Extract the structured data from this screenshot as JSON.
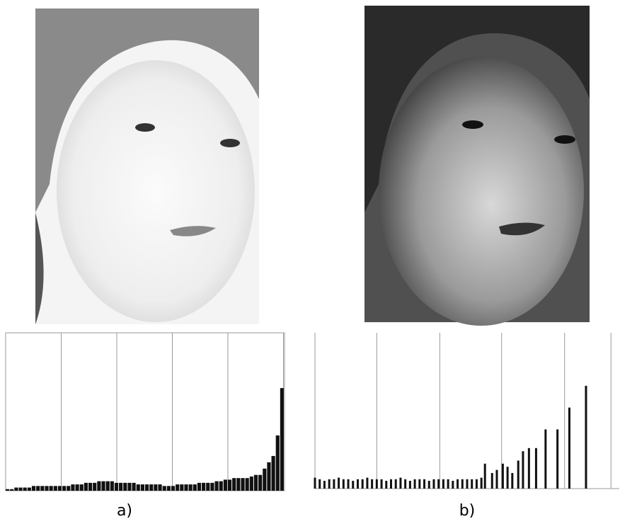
{
  "chart_data": [
    {
      "type": "histogram",
      "caption": "a)",
      "color": "#111111",
      "bins": [
        0,
        4,
        8,
        12,
        16,
        20,
        24,
        28,
        32,
        36,
        40,
        44,
        48,
        52,
        56,
        60,
        64,
        68,
        72,
        76,
        80,
        84,
        88,
        92,
        96,
        100,
        104,
        108,
        112,
        116,
        120,
        124,
        128,
        132,
        136,
        140,
        144,
        148,
        152,
        156,
        160,
        164,
        168,
        172,
        176,
        180,
        184,
        188,
        192,
        196,
        200,
        204,
        208,
        212,
        216,
        220,
        224,
        228,
        232,
        236,
        240,
        244,
        248,
        252,
        256
      ],
      "values": [
        1,
        1,
        2,
        2,
        2,
        2,
        3,
        3,
        3,
        3,
        3,
        3,
        3,
        3,
        3,
        4,
        4,
        4,
        5,
        5,
        5,
        6,
        6,
        6,
        6,
        5,
        5,
        5,
        5,
        5,
        4,
        4,
        4,
        4,
        4,
        4,
        3,
        3,
        3,
        4,
        4,
        4,
        4,
        4,
        5,
        5,
        5,
        5,
        6,
        6,
        7,
        7,
        8,
        8,
        8,
        8,
        9,
        10,
        10,
        14,
        18,
        22,
        35,
        65
      ],
      "xlim": [
        0,
        256
      ],
      "ylim": [
        0,
        100
      ],
      "xticks": [
        51,
        102,
        153,
        204,
        255
      ],
      "grid": true
    },
    {
      "type": "stem",
      "caption": "b)",
      "color": "#111111",
      "x": [
        0,
        4,
        8,
        12,
        16,
        20,
        24,
        28,
        32,
        36,
        40,
        44,
        48,
        52,
        56,
        60,
        64,
        68,
        72,
        76,
        80,
        84,
        88,
        92,
        96,
        100,
        104,
        108,
        112,
        116,
        120,
        124,
        128,
        132,
        136,
        140,
        143,
        149,
        153,
        158,
        162,
        166,
        171,
        175,
        180,
        186,
        194,
        204,
        214,
        228
      ],
      "values": [
        7,
        6,
        5,
        6,
        6,
        7,
        6,
        6,
        5,
        6,
        6,
        7,
        6,
        6,
        6,
        5,
        6,
        6,
        7,
        6,
        5,
        6,
        6,
        6,
        5,
        6,
        6,
        6,
        6,
        5,
        6,
        6,
        6,
        6,
        6,
        7,
        16,
        10,
        12,
        16,
        14,
        10,
        18,
        24,
        26,
        26,
        38,
        38,
        52,
        66
      ],
      "xlim": [
        0,
        256
      ],
      "ylim": [
        0,
        100
      ],
      "xticks": [
        52,
        105,
        157,
        210,
        249
      ],
      "grid": true
    }
  ]
}
